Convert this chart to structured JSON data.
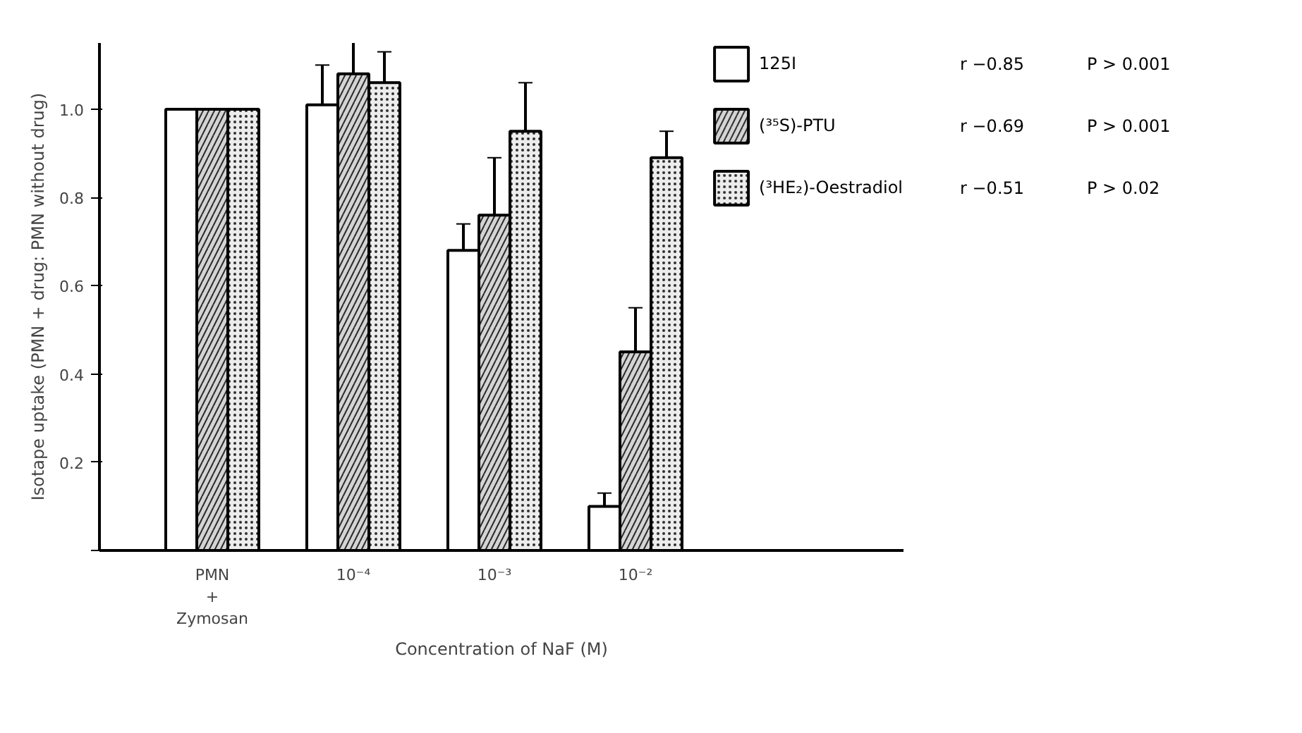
{
  "chart_data": {
    "type": "bar",
    "xlabel": "Concentration of NaF (M)",
    "ylabel": "Isotape uptake (PMN + drug: PMN without drug)",
    "categories": [
      "PMN\n+\nZymosan",
      "10⁻⁴",
      "10⁻³",
      "10⁻²"
    ],
    "series": [
      {
        "name": "125I",
        "color": "#ffffff",
        "values": [
          1.0,
          1.01,
          0.68,
          0.1
        ],
        "errors": [
          null,
          0.09,
          0.06,
          0.03
        ]
      },
      {
        "name": "(³⁵S)-PTU",
        "color": "#d4d4d4",
        "values": [
          1.0,
          1.08,
          0.76,
          0.45
        ],
        "errors": [
          null,
          0.08,
          0.13,
          0.1
        ]
      },
      {
        "name": "(³HE₂)-Oestradiol",
        "color": "#ececec",
        "values": [
          1.0,
          1.06,
          0.95,
          0.89
        ],
        "errors": [
          null,
          0.07,
          0.11,
          0.06
        ]
      }
    ],
    "annotations": [
      "r −0.85",
      "P > 0.001",
      "r −0.69",
      "P > 0.001",
      "r −0.51",
      "P > 0.02"
    ],
    "ylim": [
      0,
      1.15
    ],
    "yticks": [
      {
        "value": 0,
        "label": null
      },
      0.2,
      0.4,
      0.6,
      0.8,
      {
        "value": 1,
        "label": "1.0"
      }
    ],
    "grid": false,
    "legend": "top right"
  }
}
